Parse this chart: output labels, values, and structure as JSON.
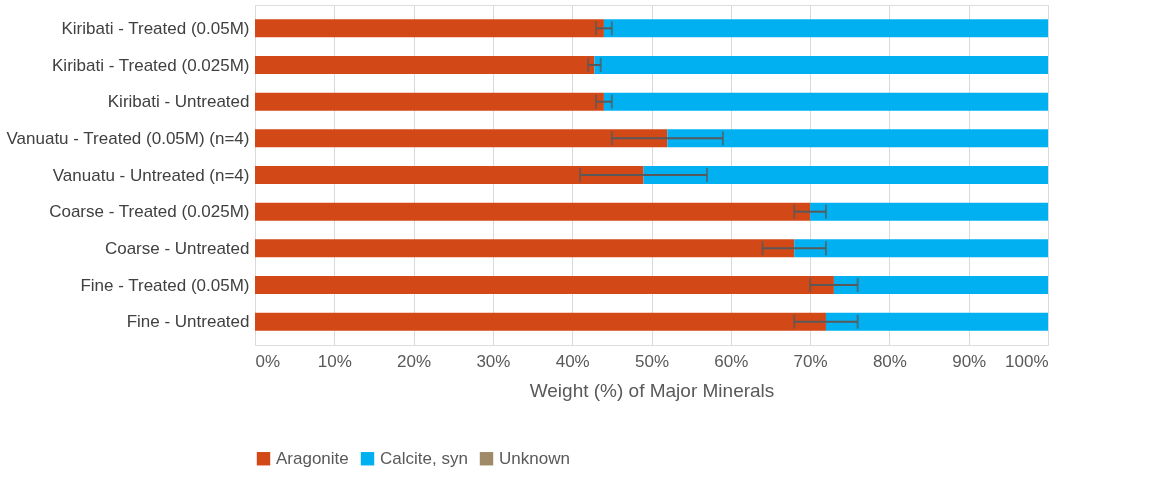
{
  "chart_data": {
    "type": "bar",
    "orientation": "horizontal",
    "stacked": true,
    "xlabel": "Weight (%) of Major Minerals",
    "categories": [
      "Kiribati - Treated (0.05M)",
      "Kiribati - Treated (0.025M)",
      "Kiribati - Untreated",
      "Vanuatu - Treated (0.05M) (n=4)",
      "Vanuatu - Untreated (n=4)",
      "Coarse - Treated (0.025M)",
      "Coarse - Untreated",
      "Fine - Treated (0.05M)",
      "Fine - Untreated"
    ],
    "series": [
      {
        "name": "Aragonite",
        "color": "#d24817",
        "values": [
          44,
          42.8,
          44,
          52,
          49,
          70,
          68,
          73,
          72
        ],
        "errors": [
          1,
          0.8,
          1,
          7,
          8,
          2,
          4,
          3,
          4
        ]
      },
      {
        "name": "Calcite, syn",
        "color": "#00b0f0",
        "values": [
          56,
          57.2,
          56,
          48,
          51,
          30,
          32,
          27,
          28
        ]
      },
      {
        "name": "Unknown",
        "color": "#a08b69",
        "values": [
          0,
          0,
          0,
          0,
          0,
          0,
          0,
          0,
          0
        ]
      }
    ],
    "xlim": [
      0,
      100
    ],
    "xticks": [
      {
        "value": 0,
        "label": "0%"
      },
      {
        "value": 10,
        "label": "10%"
      },
      {
        "value": 20,
        "label": "20%"
      },
      {
        "value": 30,
        "label": "30%"
      },
      {
        "value": 40,
        "label": "40%"
      },
      {
        "value": 50,
        "label": "50%"
      },
      {
        "value": 60,
        "label": "60%"
      },
      {
        "value": 70,
        "label": "70%"
      },
      {
        "value": 80,
        "label": "80%"
      },
      {
        "value": 90,
        "label": "90%"
      },
      {
        "value": 100,
        "label": "100%"
      }
    ],
    "grid": "x",
    "legend": "bottom"
  }
}
